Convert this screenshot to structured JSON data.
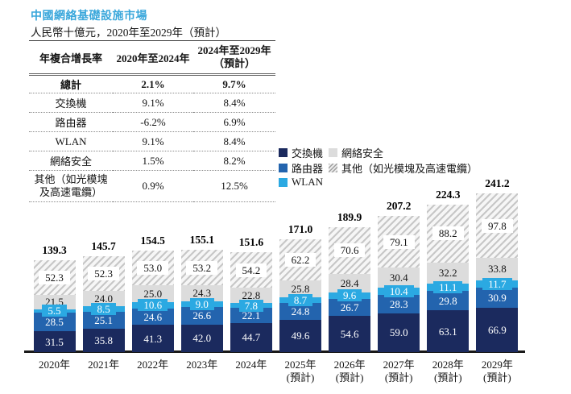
{
  "title": "中國網絡基礎設施市場",
  "subtitle": "人民幣十億元，2020年至2029年（預計）",
  "palette": {
    "title_accent": "#3AA7DB",
    "switch": "#1B2A5E",
    "router": "#2364AE",
    "wlan": "#2BA9E2",
    "security": "#DCDCDC",
    "others_hatch_line": "#C7C7C7",
    "others_hatch_bg": "#F6F6F6",
    "axis": "#191919"
  },
  "table": {
    "headers": [
      "年複合增長率",
      "2020年至2024年",
      "2024年至2029年\n（預計）"
    ],
    "rows": [
      {
        "label": "總計",
        "v1": "2.1%",
        "v2": "9.7%"
      },
      {
        "label": "交換機",
        "v1": "9.1%",
        "v2": "8.4%"
      },
      {
        "label": "路由器",
        "v1": "-6.2%",
        "v2": "6.9%"
      },
      {
        "label": "WLAN",
        "v1": "9.1%",
        "v2": "8.4%"
      },
      {
        "label": "網絡安全",
        "v1": "1.5%",
        "v2": "8.2%"
      },
      {
        "label": "其他（如光模塊\n及高速電纜）",
        "v1": "0.9%",
        "v2": "12.5%"
      }
    ]
  },
  "legend": {
    "switch": "交換機",
    "router": "路由器",
    "wlan": "WLAN",
    "security": "網絡安全",
    "others": "其他（如光模塊及高速電纜）"
  },
  "chart_data": {
    "type": "bar",
    "stacked": true,
    "title": "中國網絡基礎設施市場",
    "ylabel": "人民幣十億元",
    "legend_position": "top-right",
    "grid": false,
    "categories": [
      "2020年",
      "2021年",
      "2022年",
      "2023年",
      "2024年",
      "2025年\n(預計)",
      "2026年\n(預計)",
      "2027年\n(預計)",
      "2028年\n(預計)",
      "2029年\n(預計)"
    ],
    "series": [
      {
        "name": "交換機",
        "key": "switch",
        "values": [
          31.5,
          35.8,
          41.3,
          42.0,
          44.7,
          49.6,
          54.6,
          59.0,
          63.1,
          66.9
        ]
      },
      {
        "name": "路由器",
        "key": "router",
        "values": [
          28.5,
          25.1,
          24.6,
          26.6,
          22.1,
          24.8,
          26.7,
          28.3,
          29.8,
          30.9
        ]
      },
      {
        "name": "WLAN",
        "key": "wlan",
        "values": [
          5.5,
          8.5,
          10.6,
          9.0,
          7.8,
          8.7,
          9.6,
          10.4,
          11.1,
          11.7
        ]
      },
      {
        "name": "網絡安全",
        "key": "security",
        "values": [
          21.5,
          24.0,
          25.0,
          24.3,
          22.8,
          25.8,
          28.4,
          30.4,
          32.2,
          33.8
        ]
      },
      {
        "name": "其他（如光模塊及高速電纜）",
        "key": "others",
        "values": [
          52.3,
          52.3,
          53.0,
          53.2,
          54.2,
          62.2,
          70.6,
          79.1,
          88.2,
          97.8
        ]
      }
    ],
    "totals": [
      139.3,
      145.7,
      154.5,
      155.1,
      151.6,
      171.0,
      189.9,
      207.2,
      224.3,
      241.2
    ],
    "ylim": [
      0,
      250
    ]
  }
}
